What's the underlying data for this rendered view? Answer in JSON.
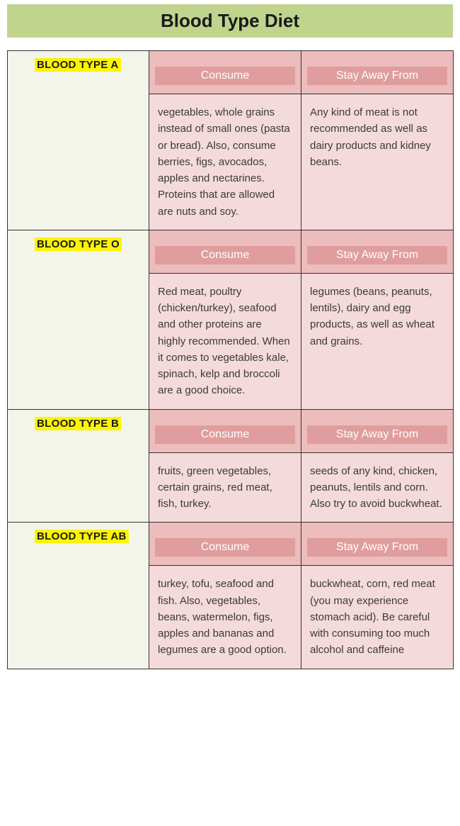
{
  "title": "Blood Type Diet",
  "columns": {
    "consume": "Consume",
    "avoid": "Stay Away From"
  },
  "colors": {
    "title_bg": "#c0d48d",
    "highlight": "#fcf403",
    "type_bg": "#f3f5ea",
    "header_bg": "#edbcbc",
    "header_inner": "#e09d9d",
    "body_bg": "#f5dadb"
  },
  "rows": [
    {
      "label": "BLOOD TYPE A",
      "consume": "vegetables, whole grains instead of small ones (pasta or bread). Also, consume berries, figs, avocados, apples and nectarines. Proteins that are allowed are nuts and soy.",
      "avoid": "Any kind of meat is not recommended as well as dairy products and kidney beans."
    },
    {
      "label": "BLOOD TYPE O",
      "consume": "Red meat, poultry (chicken/turkey), seafood and other proteins are highly recommended. When it comes to vegetables kale, spinach, kelp and broccoli are a good choice.",
      "avoid": "legumes (beans, peanuts, lentils), dairy and egg products, as well as wheat and grains."
    },
    {
      "label": "BLOOD TYPE B",
      "consume": "fruits, green vegetables, certain grains, red meat, fish, turkey.",
      "avoid": "seeds of any kind, chicken, peanuts, lentils and corn. Also try to avoid buckwheat."
    },
    {
      "label": "BLOOD TYPE AB",
      "consume": "turkey, tofu, seafood and fish. Also, vegetables, beans, watermelon, figs, apples and bananas and legumes are a good option.",
      "avoid": "buckwheat, corn, red meat (you may experience stomach acid). Be careful with consuming too much alcohol and caffeine"
    }
  ]
}
